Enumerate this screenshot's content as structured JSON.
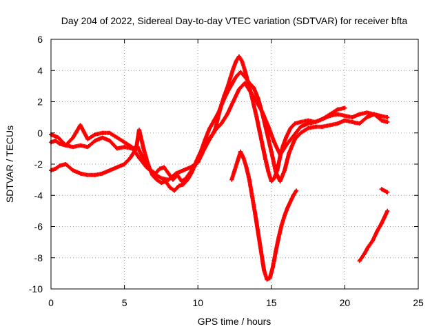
{
  "chart_data": {
    "type": "scatter",
    "title": "Day 204 of 2022, Sidereal Day-to-day VTEC variation (SDTVAR) for receiver bfta",
    "xlabel": "GPS time / hours",
    "ylabel": "SDTVAR / TECUs",
    "xlim": [
      0,
      25
    ],
    "ylim": [
      -10,
      6
    ],
    "xticks": [
      0,
      5,
      10,
      15,
      20,
      25
    ],
    "yticks": [
      -10,
      -8,
      -6,
      -4,
      -2,
      0,
      2,
      4,
      6
    ],
    "grid": true,
    "marker": "+",
    "color": "#ff0000",
    "series": [
      {
        "name": "arc-1",
        "x": [
          0,
          0.3,
          0.6,
          1.0,
          1.5,
          2.0,
          2.5,
          3.0,
          3.5,
          4.0,
          4.5,
          5.0,
          5.5,
          5.9,
          6.2,
          6.5,
          6.8,
          7.1,
          7.4,
          7.7,
          8.0,
          8.3,
          8.6,
          8.9,
          9.2,
          9.5,
          9.8,
          10.0,
          10.2,
          10.4,
          10.6,
          10.8,
          11.0,
          11.2,
          11.4,
          11.6,
          11.8,
          12.0,
          12.2,
          12.4,
          12.6,
          12.8,
          13.0,
          13.2,
          13.4,
          13.6,
          13.8,
          14.0,
          14.2,
          14.4,
          14.6,
          14.8,
          15.0,
          15.2,
          15.4,
          15.6,
          15.8,
          16.0,
          16.3,
          16.6,
          17.0,
          17.5,
          18.0,
          18.5,
          19.0,
          19.5,
          20.0,
          20.5,
          21.0,
          21.5,
          22.0,
          22.4,
          22.9
        ],
        "y": [
          -0.6,
          -0.5,
          -0.7,
          -0.8,
          -0.9,
          -0.8,
          -0.9,
          -0.5,
          -0.3,
          -0.5,
          -1.0,
          -0.9,
          -1.0,
          -0.9,
          -1.5,
          -2.0,
          -2.4,
          -2.6,
          -2.3,
          -2.2,
          -2.6,
          -3.0,
          -2.7,
          -3.1,
          -2.9,
          -2.5,
          -2.1,
          -1.6,
          -1.2,
          -0.8,
          -0.6,
          -0.3,
          -0.1,
          0.3,
          1.1,
          1.8,
          2.4,
          2.9,
          3.5,
          4.1,
          4.6,
          4.9,
          4.6,
          4.0,
          3.3,
          2.6,
          1.8,
          1.0,
          0.1,
          -0.8,
          -1.7,
          -2.5,
          -3.1,
          -2.9,
          -2.4,
          -1.5,
          -0.8,
          -0.3,
          0.3,
          0.6,
          0.7,
          0.8,
          0.7,
          0.9,
          1.1,
          1.2,
          1.1,
          1.0,
          1.2,
          1.3,
          1.2,
          1.1,
          1.0
        ]
      },
      {
        "name": "arc-2",
        "x": [
          0,
          0.3,
          0.6,
          1.0,
          1.5,
          2.0,
          2.5,
          3.0,
          3.5,
          4.0,
          4.5,
          5.0,
          5.4,
          5.8,
          6.0,
          6.3,
          6.6,
          6.9,
          7.2,
          7.5,
          7.8,
          8.1,
          8.4,
          8.7,
          9.0,
          9.3,
          9.6,
          9.9,
          10.2,
          10.5,
          10.8,
          11.1,
          11.4,
          11.7,
          12.0,
          12.3,
          12.6,
          12.9,
          13.2,
          13.5,
          13.8,
          14.1,
          14.4,
          14.7,
          15.0,
          15.3,
          15.6,
          15.9,
          16.2,
          16.6,
          17.0,
          17.5,
          18.0,
          18.5,
          19.0,
          19.5,
          20.0,
          20.5,
          21.0,
          21.5,
          22.0,
          22.5,
          22.9
        ],
        "y": [
          -2.4,
          -2.3,
          -2.1,
          -2.0,
          -2.4,
          -2.6,
          -2.7,
          -2.7,
          -2.6,
          -2.4,
          -2.2,
          -2.0,
          -1.6,
          -1.0,
          0.2,
          -1.0,
          -2.0,
          -2.7,
          -3.0,
          -3.2,
          -3.1,
          -3.5,
          -3.7,
          -3.4,
          -3.3,
          -3.0,
          -2.5,
          -1.8,
          -1.2,
          -0.4,
          0.3,
          0.8,
          1.3,
          2.0,
          2.6,
          3.1,
          3.6,
          3.9,
          3.6,
          3.2,
          2.9,
          2.2,
          1.2,
          0.0,
          -1.2,
          -2.5,
          -3.1,
          -2.4,
          -1.3,
          -0.4,
          0.0,
          0.3,
          0.4,
          0.4,
          0.5,
          0.6,
          0.8,
          0.7,
          0.6,
          1.0,
          1.2,
          0.8,
          0.7
        ]
      },
      {
        "name": "arc-3",
        "x": [
          0,
          0.5,
          1.0,
          1.5,
          2.0,
          2.5,
          3.0,
          3.5,
          4.0,
          4.5,
          5.0,
          5.5,
          6.0,
          6.5,
          7.0,
          7.5,
          8.0,
          8.5,
          9.0,
          9.5,
          10.0,
          10.4,
          10.8,
          11.2,
          11.6,
          12.0,
          12.4,
          12.8,
          13.2,
          13.6,
          14.0,
          14.4,
          14.8,
          15.2,
          15.6,
          16.0,
          16.5,
          17.0,
          17.5,
          18.0,
          18.5,
          19.0,
          19.5,
          20.0
        ],
        "y": [
          -0.1,
          -0.3,
          -0.8,
          -0.3,
          0.5,
          -0.4,
          -0.1,
          0.0,
          0.0,
          -0.3,
          -0.6,
          -0.9,
          -1.6,
          -2.2,
          -2.6,
          -2.9,
          -3.0,
          -2.6,
          -2.4,
          -2.2,
          -1.9,
          -1.1,
          -0.4,
          0.2,
          0.6,
          1.2,
          2.0,
          2.8,
          3.2,
          2.6,
          2.0,
          1.3,
          0.4,
          -0.6,
          -1.4,
          -0.8,
          -0.2,
          0.4,
          0.6,
          0.7,
          0.9,
          1.2,
          1.5,
          1.6
        ]
      },
      {
        "name": "arc-4",
        "x": [
          12.3,
          12.5,
          12.7,
          12.9,
          13.1,
          13.3,
          13.5,
          13.7,
          13.9,
          14.1,
          14.3,
          14.5,
          14.7,
          14.9,
          15.1,
          15.3,
          15.5,
          15.7,
          15.9,
          16.1,
          16.3,
          16.5,
          16.7
        ],
        "y": [
          -3.0,
          -2.4,
          -1.8,
          -1.2,
          -1.6,
          -2.2,
          -3.0,
          -4.1,
          -5.2,
          -6.4,
          -7.6,
          -8.8,
          -9.4,
          -9.3,
          -8.6,
          -7.6,
          -6.7,
          -5.9,
          -5.3,
          -4.8,
          -4.4,
          -4.0,
          -3.7
        ]
      },
      {
        "name": "arc-5",
        "x": [
          21.0,
          21.3,
          21.6,
          21.9,
          22.2,
          22.5,
          22.7,
          22.9
        ],
        "y": [
          -8.2,
          -7.8,
          -7.3,
          -6.9,
          -6.3,
          -5.8,
          -5.4,
          -5.0
        ]
      },
      {
        "name": "arc-6",
        "x": [
          22.5,
          22.7,
          22.9
        ],
        "y": [
          -3.6,
          -3.7,
          -3.8
        ]
      }
    ]
  }
}
